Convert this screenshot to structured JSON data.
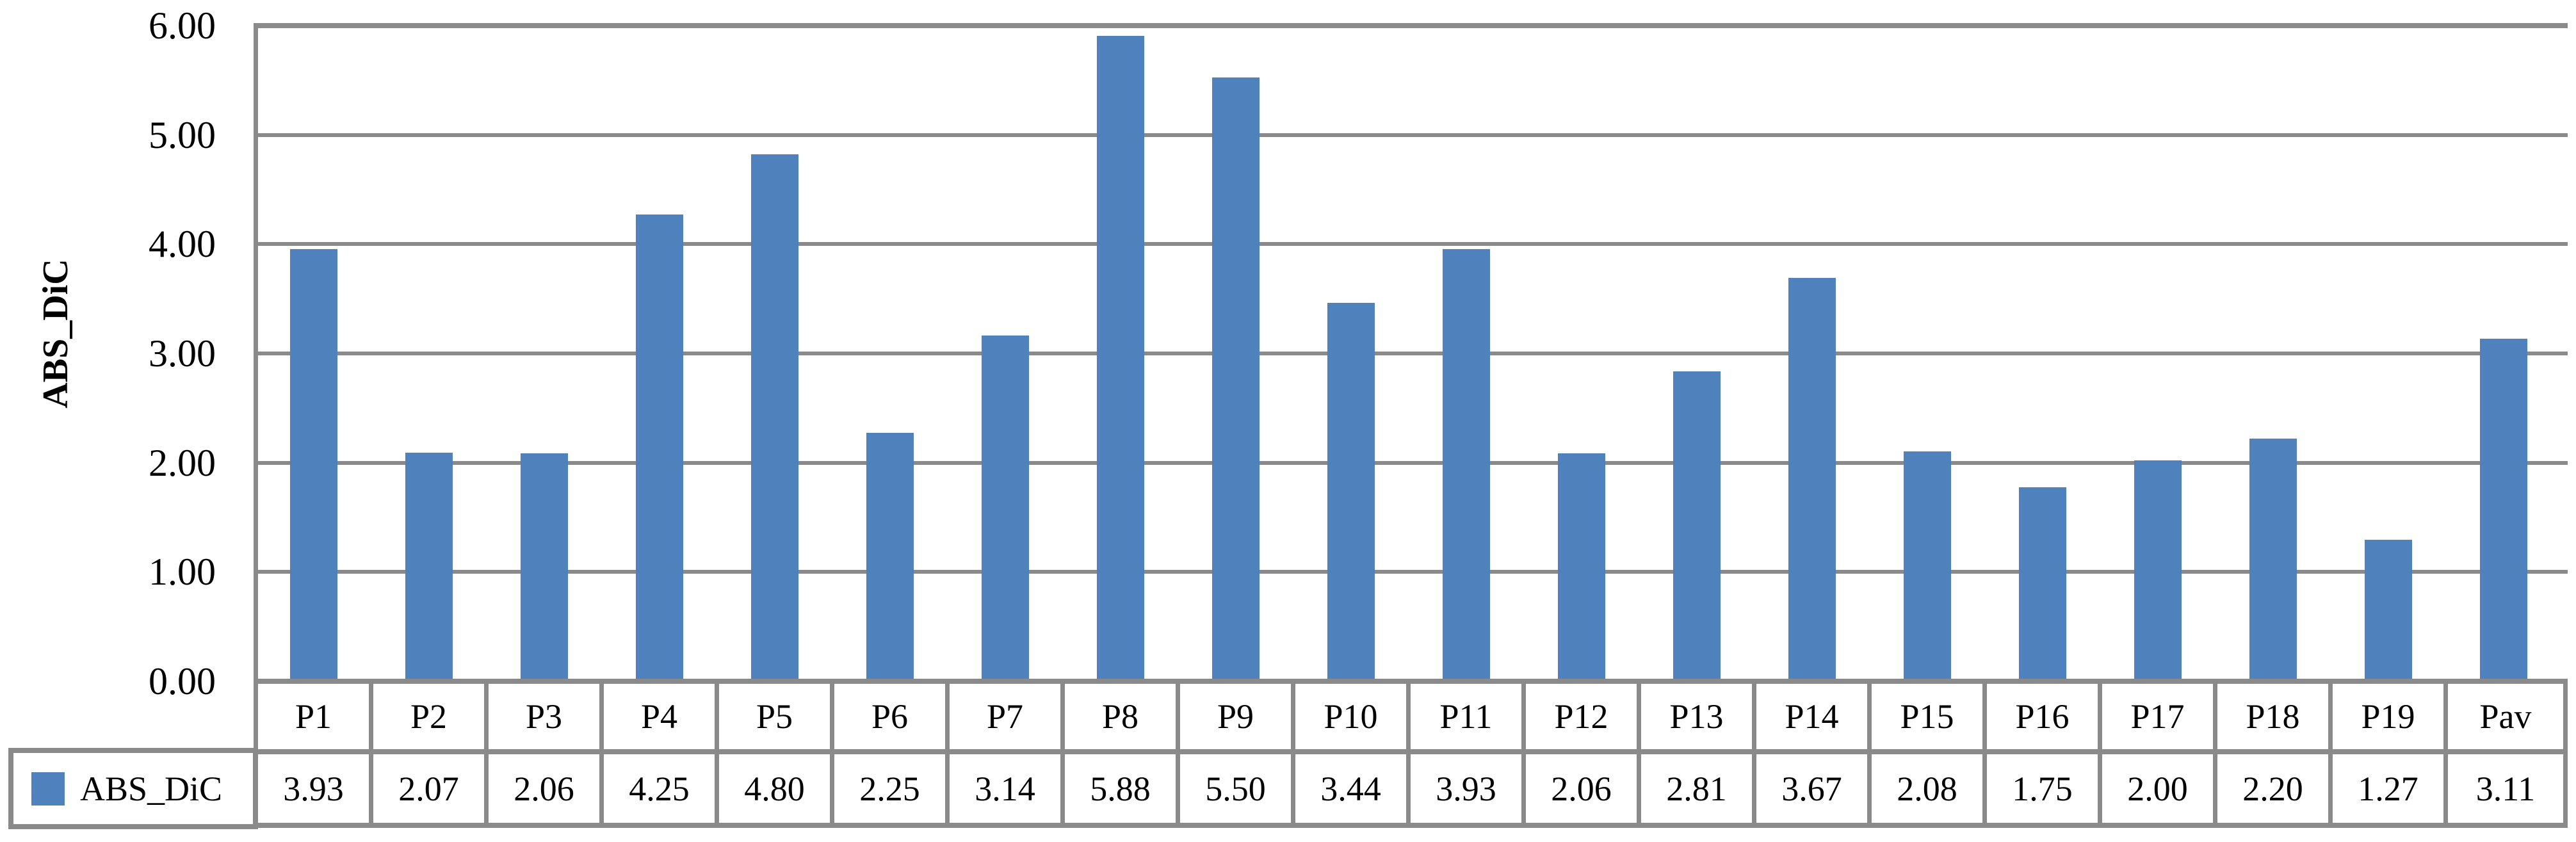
{
  "chart_data": {
    "type": "bar",
    "title": "",
    "xlabel": "",
    "ylabel": "ABS_DiC",
    "ylim": [
      0,
      6
    ],
    "ytick_step": 1,
    "ytick_labels": [
      "0.00",
      "1.00",
      "2.00",
      "3.00",
      "4.00",
      "5.00",
      "6.00"
    ],
    "grid": true,
    "legend_position": "data-table-left",
    "categories": [
      "P1",
      "P2",
      "P3",
      "P4",
      "P5",
      "P6",
      "P7",
      "P8",
      "P9",
      "P10",
      "P11",
      "P12",
      "P13",
      "P14",
      "P15",
      "P16",
      "P17",
      "P18",
      "P19",
      "Pav"
    ],
    "series": [
      {
        "name": "ABS_DiC",
        "color": "#4F81BD",
        "values": [
          3.93,
          2.07,
          2.06,
          4.25,
          4.8,
          2.25,
          3.14,
          5.88,
          5.5,
          3.44,
          3.93,
          2.06,
          2.81,
          3.67,
          2.08,
          1.75,
          2.0,
          2.2,
          1.27,
          3.11
        ],
        "value_labels": [
          "3.93",
          "2.07",
          "2.06",
          "4.25",
          "4.80",
          "2.25",
          "3.14",
          "5.88",
          "5.50",
          "3.44",
          "3.93",
          "2.06",
          "2.81",
          "3.67",
          "2.08",
          "1.75",
          "2.00",
          "2.20",
          "1.27",
          "3.11"
        ]
      }
    ],
    "data_table_shown": true,
    "colors": {
      "bar": "#4F81BD",
      "gridline": "#8A8A8A",
      "table_border": "#8A8A8A",
      "text": "#000000",
      "background": "#FFFFFF"
    }
  },
  "legend": {
    "label": "ABS_DiC"
  }
}
